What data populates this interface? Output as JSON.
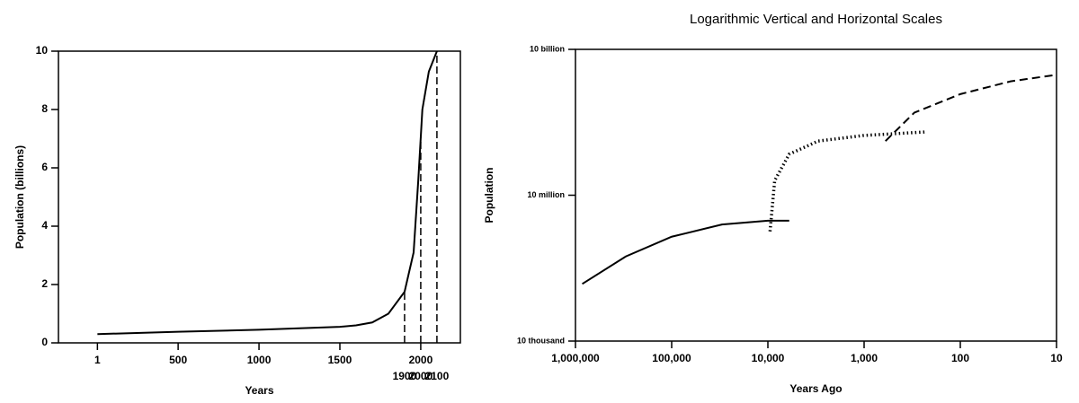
{
  "chart_data": [
    {
      "type": "line",
      "x_label": "Years",
      "y_label": "Population (billions)",
      "x": [
        1,
        500,
        1000,
        1500,
        1600,
        1700,
        1800,
        1900,
        1956,
        1985,
        2010,
        2050,
        2100
      ],
      "series": [
        {
          "color": "#000000",
          "dash": "solid",
          "values": [
            0.3,
            0.38,
            0.45,
            0.55,
            0.6,
            0.7,
            1.0,
            1.75,
            3.1,
            5.6,
            8.0,
            9.3,
            10
          ]
        }
      ],
      "xlim": [
        -240,
        2245
      ],
      "xticks": [
        1,
        500,
        1000,
        1500,
        2000
      ],
      "ylim": [
        0,
        10
      ],
      "yticks": [
        0,
        2,
        4,
        6,
        8,
        10
      ],
      "marked_years": [
        1900,
        2000,
        2100
      ]
    },
    {
      "type": "line",
      "title": "Logarithmic Vertical and Horizontal Scales",
      "x_label": "Years Ago",
      "y_label": "Population",
      "log_x": true,
      "log_y": true,
      "series": [
        {
          "color": "#000000",
          "dash": "solid",
          "x": [
            850000,
            300000,
            100000,
            30000,
            10000,
            6000
          ],
          "values": [
            150000,
            550000,
            1400000,
            2500000,
            3000000,
            3000000
          ]
        },
        {
          "color": "#000000",
          "dash": "dotted",
          "x": [
            9500,
            8500,
            6000,
            3000,
            1000,
            230
          ],
          "values": [
            1800000,
            20000000,
            70000000,
            130000000,
            170000000,
            200000000
          ]
        },
        {
          "color": "#000000",
          "dash": "dashed",
          "x": [
            600,
            300,
            100,
            30,
            10
          ],
          "values": [
            130000000,
            500000000,
            1200000000,
            2200000000,
            3000000000
          ]
        }
      ],
      "xlim": [
        1000000,
        10
      ],
      "xticks": [
        {
          "value": 1000000,
          "label": "1,000,000"
        },
        {
          "value": 100000,
          "label": "100,000"
        },
        {
          "value": 10000,
          "label": "10,000"
        },
        {
          "value": 1000,
          "label": "1,000"
        },
        100,
        10
      ],
      "ylim": [
        10000,
        10000000000
      ],
      "yticks": [
        {
          "value": 10000,
          "label": "10 thousand"
        },
        {
          "value": 10000000,
          "label": "10 million"
        },
        {
          "value": 10000000000,
          "label": "10 billion"
        }
      ]
    }
  ]
}
